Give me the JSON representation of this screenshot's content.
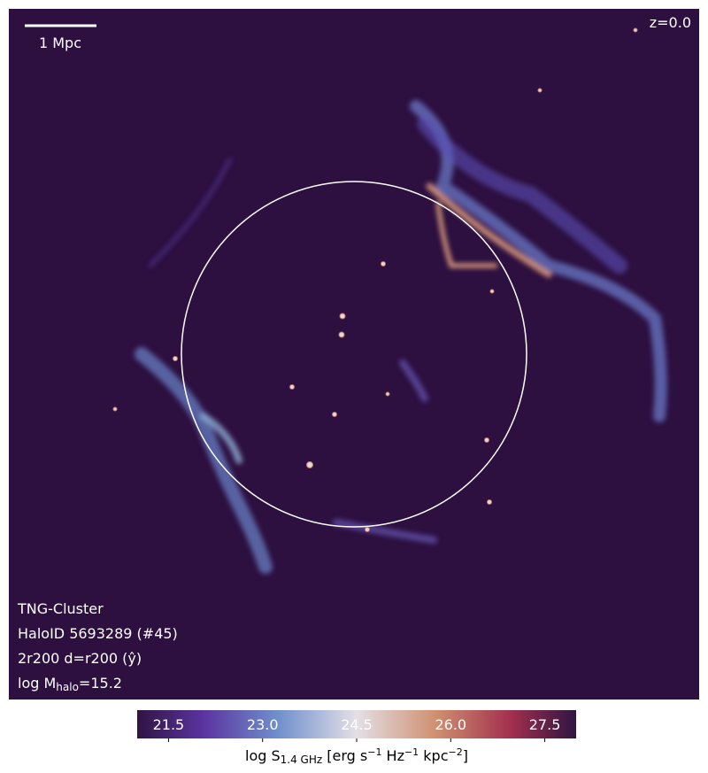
{
  "annotations": {
    "scale_bar": "1 Mpc",
    "redshift": "z=0.0",
    "sim": "TNG-Cluster",
    "halo": "HaloID 5693289 (#45)",
    "projection": "2r200 d=r200 (ŷ)",
    "mass": [
      "log M",
      "halo",
      "=15.2"
    ]
  },
  "colorbar": {
    "label": [
      "log S",
      "1.4 GHz",
      " [erg s",
      "−1",
      " Hz",
      "−1",
      " kpc",
      "−2",
      "]"
    ],
    "clim": [
      21.0,
      28.0
    ],
    "ticks": [
      21.5,
      {
        "value": 23.0,
        "label": "23.0"
      },
      24.5,
      {
        "value": 26.0,
        "label": "26.0"
      },
      27.5
    ]
  }
}
